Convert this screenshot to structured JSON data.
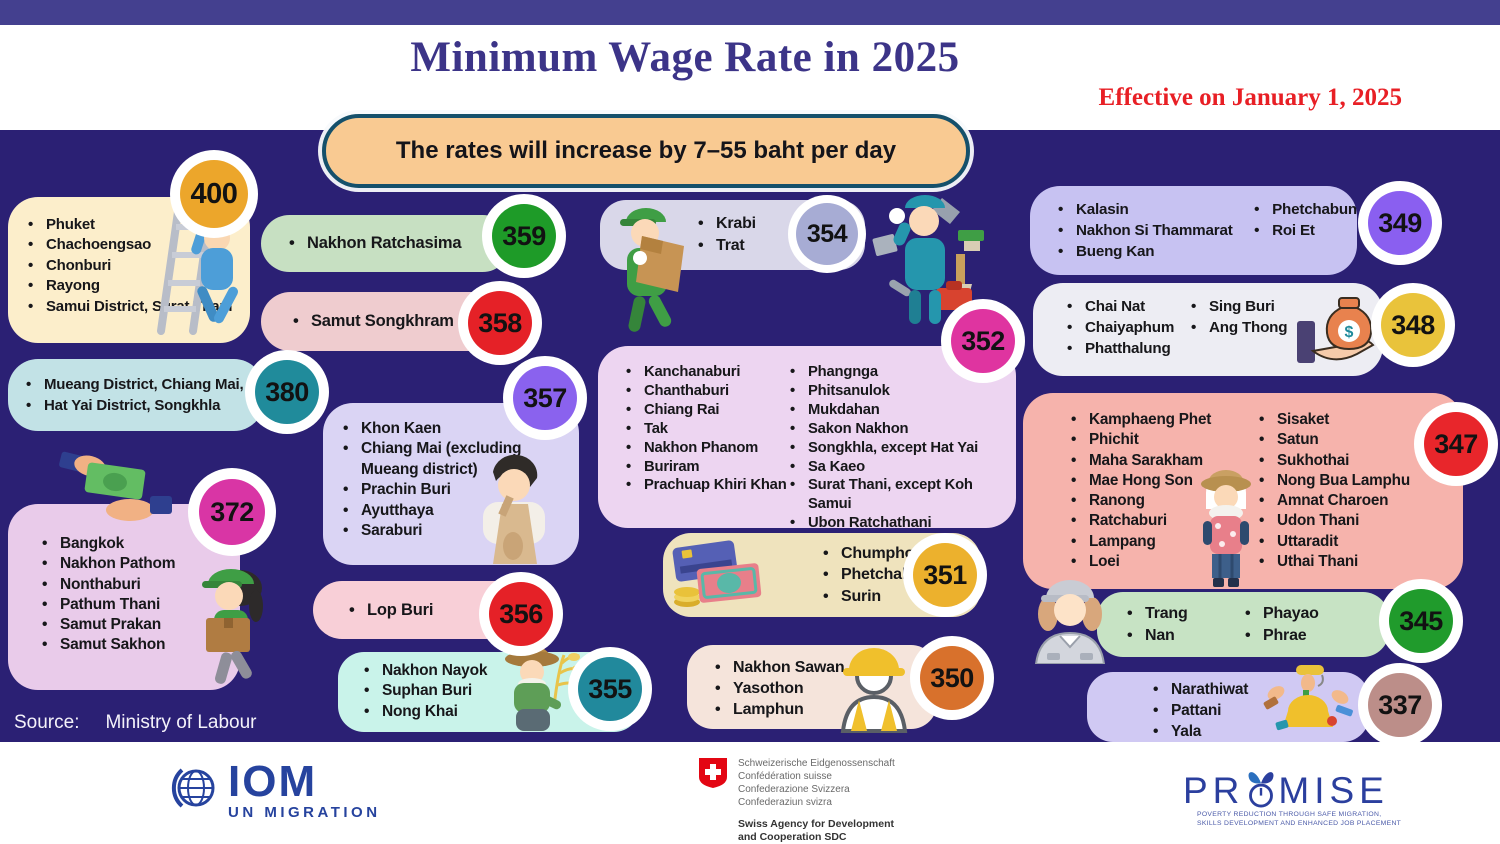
{
  "page": {
    "title": "Minimum Wage Rate in 2025",
    "effective_note": "Effective on January 1, 2025",
    "banner_text": "The rates will increase by 7–55 baht per day",
    "source_label": "Source:",
    "source_value": "Ministry of Labour",
    "colors": {
      "background": "#2b2074",
      "top_bar": "#44408f",
      "banner_bg": "#f9ca92",
      "banner_border": "#15506b",
      "title": "#3c3488",
      "effective": "#e81f25"
    }
  },
  "groups": [
    {
      "rate": "400",
      "badge_color": "#eca62b",
      "box_color": "#fceecb",
      "items": [
        "Phuket",
        "Chachoengsao",
        "Chonburi",
        "Rayong",
        "Samui District, Surat Thani"
      ]
    },
    {
      "rate": "380",
      "badge_color": "#208b9b",
      "box_color": "#c2e2e6",
      "items": [
        "Mueang District, Chiang Mai,",
        "Hat Yai District, Songkhla"
      ]
    },
    {
      "rate": "372",
      "badge_color": "#d935a5",
      "box_color": "#e9cbea",
      "items": [
        "Bangkok",
        "Nakhon Pathom",
        "Nonthaburi",
        "Pathum Thani",
        "Samut Prakan",
        "Samut Sakhon"
      ]
    },
    {
      "rate": "359",
      "badge_color": "#1e9b28",
      "box_color": "#c7e0c2",
      "items": [
        "Nakhon Ratchasima"
      ]
    },
    {
      "rate": "358",
      "badge_color": "#e52127",
      "box_color": "#efcccf",
      "items": [
        "Samut Songkhram"
      ]
    },
    {
      "rate": "357",
      "badge_color": "#8a62ee",
      "box_color": "#dad4f4",
      "items": [
        "Khon Kaen",
        "Chiang Mai (excluding Mueang district)",
        "Prachin Buri",
        "Ayutthaya",
        "Saraburi"
      ]
    },
    {
      "rate": "356",
      "badge_color": "#e52127",
      "box_color": "#f8cfd7",
      "items": [
        "Lop Buri"
      ]
    },
    {
      "rate": "355",
      "badge_color": "#21899c",
      "box_color": "#c9f3ea",
      "items": [
        "Nakhon Nayok",
        "Suphan Buri",
        "Nong Khai"
      ]
    },
    {
      "rate": "354",
      "badge_color": "#a7acd4",
      "box_color": "#d9d7e9",
      "items": [
        "Krabi",
        "Trat"
      ]
    },
    {
      "rate": "352",
      "badge_color": "#df34a0",
      "box_color": "#edd5f1",
      "items": [
        "Kanchanaburi",
        "Chanthaburi",
        "Chiang Rai",
        "Tak",
        "Nakhon Phanom",
        "Buriram",
        "Prachuap Khiri Khan"
      ],
      "items2": [
        "Phangnga",
        "Phitsanulok",
        "Mukdahan",
        "Sakon Nakhon",
        "Songkhla, except Hat Yai",
        "Sa Kaeo",
        "Surat Thani, except Koh Samui",
        "Ubon Ratchathani"
      ]
    },
    {
      "rate": "351",
      "badge_color": "#ecb12d",
      "box_color": "#efe3bd",
      "items": [
        "Chumphon",
        "Phetchaburi",
        "Surin"
      ]
    },
    {
      "rate": "350",
      "badge_color": "#d8712c",
      "box_color": "#f5e4db",
      "items": [
        "Nakhon Sawan",
        "Yasothon",
        "Lamphun"
      ]
    },
    {
      "rate": "349",
      "badge_color": "#8a5ff0",
      "box_color": "#c7c2f2",
      "items": [
        "Kalasin",
        "Nakhon Si Thammarat",
        "Bueng Kan"
      ],
      "items2": [
        "Phetchabun",
        "Roi Et"
      ]
    },
    {
      "rate": "348",
      "badge_color": "#e9c33b",
      "box_color": "#ededf3",
      "items": [
        "Chai Nat",
        "Chaiyaphum",
        "Phatthalung"
      ],
      "items2": [
        "Sing Buri",
        "Ang Thong"
      ]
    },
    {
      "rate": "347",
      "badge_color": "#e8262b",
      "box_color": "#f6b3ac",
      "items": [
        "Kamphaeng Phet",
        "Phichit",
        "Maha Sarakham",
        "Mae Hong Son",
        "Ranong",
        "Ratchaburi",
        "Lampang",
        "Loei"
      ],
      "items2": [
        "Sisaket",
        "Satun",
        "Sukhothai",
        "Nong Bua Lamphu",
        "Amnat Charoen",
        "Udon Thani",
        "Uttaradit",
        "Uthai Thani"
      ]
    },
    {
      "rate": "345",
      "badge_color": "#209b2c",
      "box_color": "#c7e3c4",
      "items": [
        "Trang",
        "Nan"
      ],
      "items2": [
        "Phayao",
        "Phrae"
      ]
    },
    {
      "rate": "337",
      "badge_color": "#bc8e89",
      "box_color": "#d0c9f3",
      "items": [
        "Narathiwat",
        "Pattani",
        "Yala"
      ]
    }
  ],
  "footer": {
    "iom": {
      "acronym": "IOM",
      "subtitle": "UN MIGRATION"
    },
    "sdc": {
      "line1": "Schweizerische Eidgenossenschaft",
      "line2": "Confédération suisse",
      "line3": "Confederazione Svizzera",
      "line4": "Confederaziun svizra",
      "agency1": "Swiss Agency for Development",
      "agency2": "and Cooperation SDC"
    },
    "promise": {
      "name_start": "PR",
      "name_end": "MISE",
      "tagline1": "POVERTY REDUCTION THROUGH SAFE MIGRATION,",
      "tagline2": "SKILLS DEVELOPMENT AND ENHANCED JOB PLACEMENT"
    }
  }
}
